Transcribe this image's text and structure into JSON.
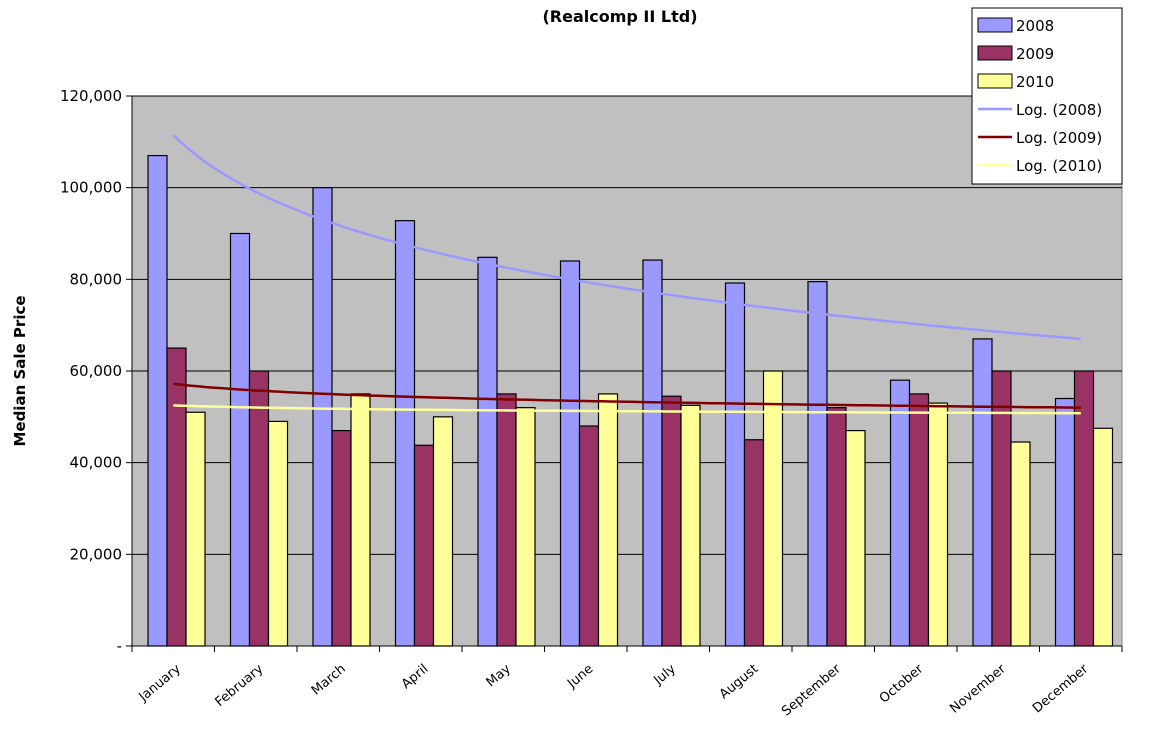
{
  "chart_data": {
    "type": "bar",
    "title": "(Realcomp II Ltd)",
    "xlabel": "",
    "ylabel": "Median Sale Price",
    "ylim": [
      0,
      120000
    ],
    "yticks": [
      {
        "value": 0,
        "label": "-"
      },
      {
        "value": 20000,
        "label": "20,000"
      },
      {
        "value": 40000,
        "label": "40,000"
      },
      {
        "value": 60000,
        "label": "60,000"
      },
      {
        "value": 80000,
        "label": "80,000"
      },
      {
        "value": 100000,
        "label": "100,000"
      },
      {
        "value": 120000,
        "label": "120,000"
      }
    ],
    "categories": [
      "January",
      "February",
      "March",
      "April",
      "May",
      "June",
      "July",
      "August",
      "September",
      "October",
      "November",
      "December"
    ],
    "series": [
      {
        "name": "2008",
        "color": "#9999ff",
        "values": [
          107000,
          90000,
          100000,
          92800,
          84800,
          84000,
          84200,
          79200,
          79500,
          58000,
          67000,
          54000
        ]
      },
      {
        "name": "2009",
        "color": "#993366",
        "values": [
          65000,
          60000,
          47000,
          43800,
          55000,
          48000,
          54500,
          45000,
          52000,
          55000,
          60000,
          60000
        ]
      },
      {
        "name": "2010",
        "color": "#ffff99",
        "values": [
          51000,
          49000,
          55000,
          50000,
          52000,
          55000,
          52500,
          60000,
          47000,
          53000,
          44500,
          47500
        ]
      }
    ],
    "trendlines": [
      {
        "name": "Log. (2008)",
        "type": "logarithmic",
        "color": "#9999ff",
        "start": 111500,
        "end": 67000
      },
      {
        "name": "Log. (2009)",
        "type": "logarithmic",
        "color": "#800000",
        "start": 57200,
        "end": 52000
      },
      {
        "name": "Log. (2010)",
        "type": "logarithmic",
        "color": "#ffff99",
        "start": 52500,
        "end": 50800
      }
    ],
    "legend_position": "top-right",
    "grid": true,
    "plot_background": "#c0c0c0"
  }
}
